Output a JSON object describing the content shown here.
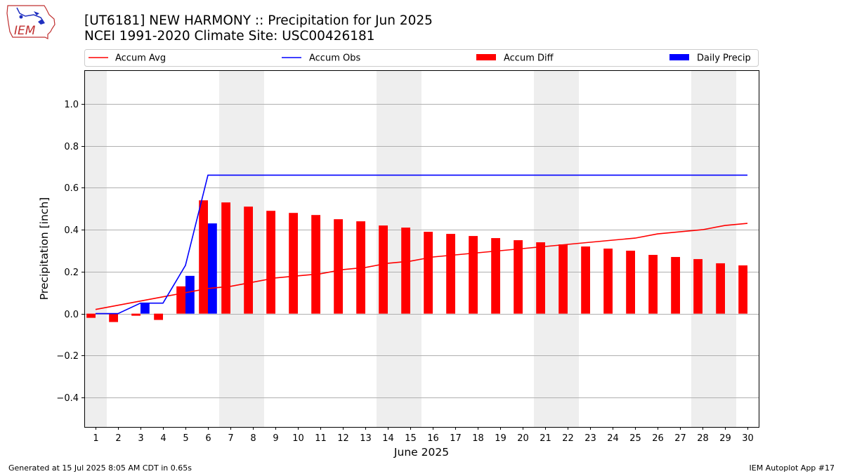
{
  "header": {
    "logo_text": "IEM",
    "title": "[UT6181] NEW HARMONY :: Precipitation for Jun 2025",
    "subtitle": "NCEI 1991-2020 Climate Site: USC00426181"
  },
  "footer": {
    "generated": "Generated at 15 Jul 2025 8:05 AM CDT in 0.65s",
    "app": "IEM Autoplot App #17"
  },
  "colors": {
    "avg": "#ff0000",
    "obs": "#0000ff",
    "diff": "#ff0000",
    "daily": "#0000ff",
    "weekend_band": "#eeeeee",
    "grid": "#b0b0b0"
  },
  "chart_data": {
    "type": "bar",
    "xlabel": "June 2025",
    "ylabel": "Precipitation [inch]",
    "xlim": [
      0.5,
      30.5
    ],
    "ylim": [
      -0.54,
      1.16
    ],
    "yticks": [
      -0.4,
      -0.2,
      0.0,
      0.2,
      0.4,
      0.6,
      0.8,
      1.0
    ],
    "ytick_labels": [
      "−0.4",
      "−0.2",
      "0.0",
      "0.2",
      "0.4",
      "0.6",
      "0.8",
      "1.0"
    ],
    "grid": "horizontal",
    "legend_position": "top",
    "legend": [
      "Accum Avg",
      "Accum Obs",
      "Accum Diff",
      "Daily Precip"
    ],
    "days": [
      1,
      2,
      3,
      4,
      5,
      6,
      7,
      8,
      9,
      10,
      11,
      12,
      13,
      14,
      15,
      16,
      17,
      18,
      19,
      20,
      21,
      22,
      23,
      24,
      25,
      26,
      27,
      28,
      29,
      30
    ],
    "weekend_days": [
      1,
      7,
      8,
      14,
      15,
      21,
      22,
      28,
      29
    ],
    "series": [
      {
        "name": "Accum Avg",
        "kind": "line",
        "values": [
          0.02,
          0.04,
          0.06,
          0.08,
          0.1,
          0.12,
          0.13,
          0.15,
          0.17,
          0.18,
          0.19,
          0.21,
          0.22,
          0.24,
          0.25,
          0.27,
          0.28,
          0.29,
          0.3,
          0.31,
          0.32,
          0.33,
          0.34,
          0.35,
          0.36,
          0.38,
          0.39,
          0.4,
          0.42,
          0.43
        ]
      },
      {
        "name": "Accum Obs",
        "kind": "line",
        "values": [
          0.0,
          0.0,
          0.05,
          0.05,
          0.23,
          0.66,
          0.66,
          0.66,
          0.66,
          0.66,
          0.66,
          0.66,
          0.66,
          0.66,
          0.66,
          0.66,
          0.66,
          0.66,
          0.66,
          0.66,
          0.66,
          0.66,
          0.66,
          0.66,
          0.66,
          0.66,
          0.66,
          0.66,
          0.66,
          0.66
        ]
      },
      {
        "name": "Accum Diff",
        "kind": "bar",
        "values": [
          -0.02,
          -0.04,
          -0.01,
          -0.03,
          0.13,
          0.54,
          0.53,
          0.51,
          0.49,
          0.48,
          0.47,
          0.45,
          0.44,
          0.42,
          0.41,
          0.39,
          0.38,
          0.37,
          0.36,
          0.35,
          0.34,
          0.33,
          0.32,
          0.31,
          0.3,
          0.28,
          0.27,
          0.26,
          0.24,
          0.23
        ]
      },
      {
        "name": "Daily Precip",
        "kind": "bar",
        "values": [
          0,
          0,
          0.05,
          0,
          0.18,
          0.43,
          0,
          0,
          0,
          0,
          0,
          0,
          0,
          0,
          0,
          0,
          0,
          0,
          0,
          0,
          0,
          0,
          0,
          0,
          0,
          0,
          0,
          0,
          0,
          0
        ]
      }
    ]
  }
}
